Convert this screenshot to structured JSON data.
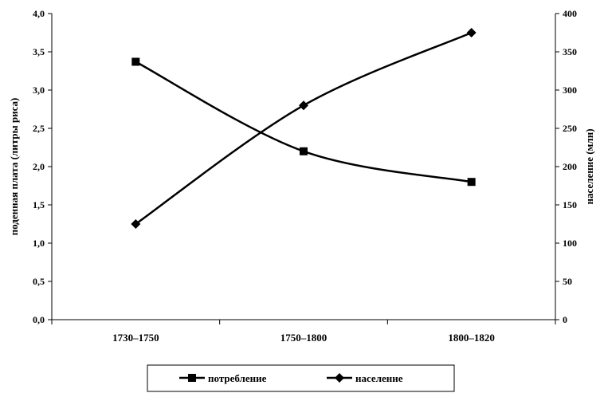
{
  "chart_data": {
    "type": "line",
    "categories": [
      "1730–1750",
      "1750–1800",
      "1800–1820"
    ],
    "y_left": {
      "label": "поденная плата (литры риса)",
      "range": [
        0,
        4
      ],
      "ticks": [
        "0,0",
        "0,5",
        "1,0",
        "1,5",
        "2,0",
        "2,5",
        "3,0",
        "3,5",
        "4,0"
      ]
    },
    "y_right": {
      "label": "население (млн)",
      "range": [
        0,
        400
      ],
      "ticks": [
        "0",
        "50",
        "100",
        "150",
        "200",
        "250",
        "300",
        "350",
        "400"
      ]
    },
    "series": [
      {
        "name": "потребление",
        "axis": "left",
        "marker": "square",
        "values": [
          3.37,
          2.2,
          1.8
        ]
      },
      {
        "name": "население",
        "axis": "right",
        "marker": "diamond",
        "values": [
          125,
          280,
          375
        ]
      }
    ],
    "grid": false,
    "legend_position": "bottom",
    "line_color": "#000000"
  }
}
